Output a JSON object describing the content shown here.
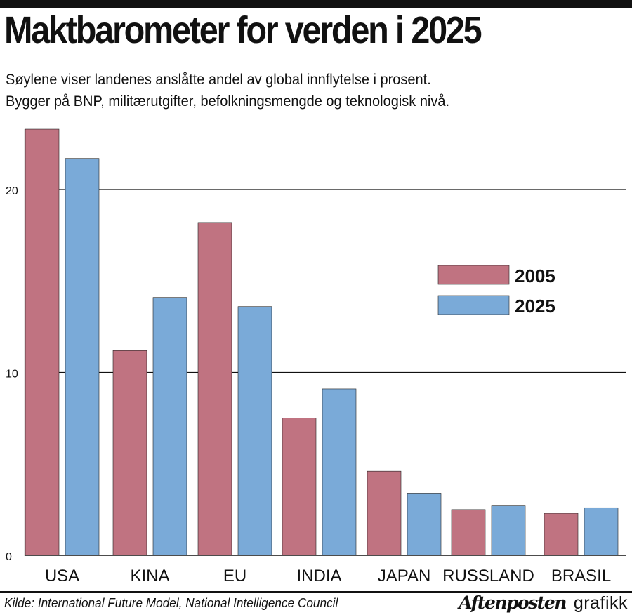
{
  "header": {
    "title": "Maktbarometer for verden i 2025",
    "subtitle_lines": [
      "Søylene viser landenes anslåtte andel av global innflytelse i prosent.",
      "Bygger på BNP, militærutgifter, befolkningsmengde og teknologisk nivå."
    ]
  },
  "chart_data": {
    "type": "bar",
    "categories": [
      "USA",
      "KINA",
      "EU",
      "INDIA",
      "JAPAN",
      "RUSSLAND",
      "BRASIL"
    ],
    "series": [
      {
        "name": "2005",
        "color": "#c07381",
        "values": [
          23.3,
          11.2,
          18.2,
          7.5,
          4.6,
          2.5,
          2.3
        ]
      },
      {
        "name": "2025",
        "color": "#7aaad8",
        "values": [
          21.7,
          14.1,
          13.6,
          9.1,
          3.4,
          2.7,
          2.6
        ]
      }
    ],
    "y_ticks": [
      "0",
      "10",
      "20"
    ],
    "ylim": [
      0,
      23.5
    ],
    "grid": true,
    "legend_position": "right"
  },
  "footer": {
    "source": "Kilde: International Future Model, National Intelligence Council",
    "brand_logo": "Aftenposten",
    "brand_tag": "grafikk"
  }
}
